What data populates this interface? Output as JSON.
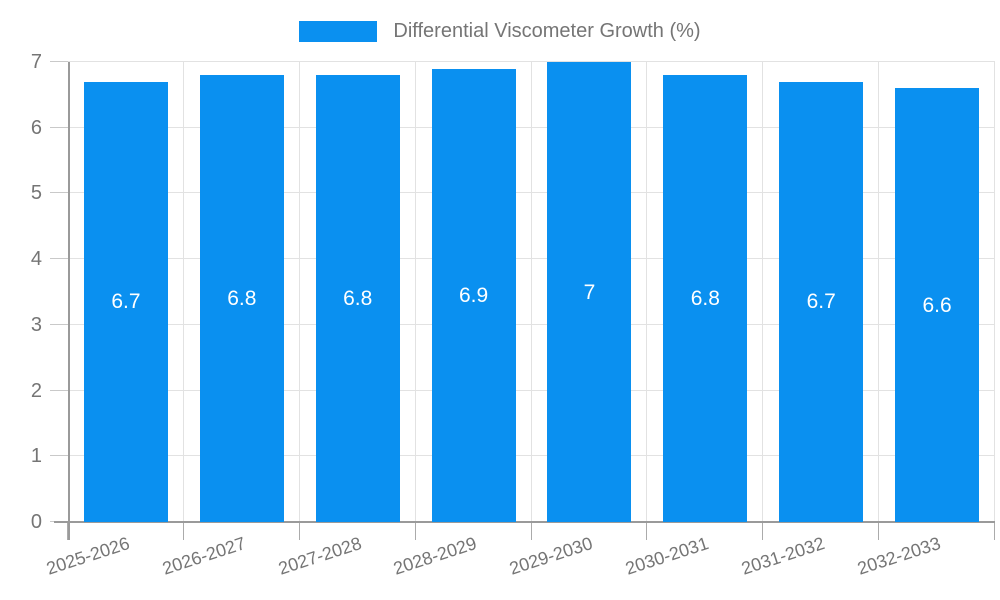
{
  "legend": {
    "label": "Differential Viscometer Growth (%)",
    "swatch_color": "#0a90f0"
  },
  "colors": {
    "bar": "#0a90f0",
    "axis_text": "#757575",
    "grid_line": "#e2e2e2",
    "axis_line": "#9a9a9a",
    "tick_line": "#c9c9c9",
    "value_label": "#ffffff",
    "background": "#ffffff"
  },
  "chart_data": {
    "type": "bar",
    "title": "Differential Viscometer Growth (%)",
    "categories": [
      "2025-2026",
      "2026-2027",
      "2027-2028",
      "2028-2029",
      "2029-2030",
      "2030-2031",
      "2031-2032",
      "2032-2033"
    ],
    "series": [
      {
        "name": "Differential Viscometer Growth (%)",
        "values": [
          6.7,
          6.8,
          6.8,
          6.9,
          7,
          6.8,
          6.7,
          6.6
        ]
      }
    ],
    "xlabel": "",
    "ylabel": "",
    "ylim": [
      0,
      7
    ],
    "yticks": [
      0,
      1,
      2,
      3,
      4,
      5,
      6,
      7
    ],
    "grid": true,
    "value_labels_shown": true,
    "value_label_position": "inside-center",
    "legend_position": "top-center",
    "x_label_rotation_deg": -18
  }
}
